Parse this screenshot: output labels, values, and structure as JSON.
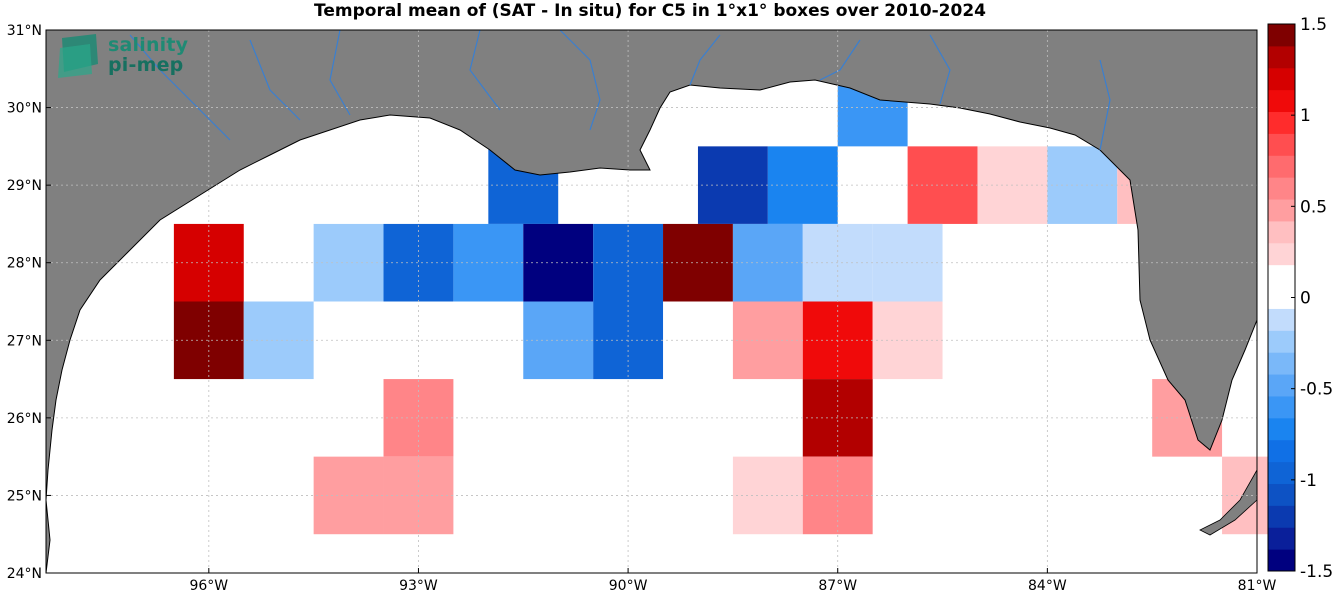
{
  "title": "Temporal mean of (SAT - In situ) for C5 in 1°x1° boxes over 2010-2024",
  "logo": {
    "line1": "salinity",
    "line2": "pi-mep"
  },
  "axes": {
    "lon_ticks": [
      {
        "value": -96,
        "label": "96°W"
      },
      {
        "value": -93,
        "label": "93°W"
      },
      {
        "value": -90,
        "label": "90°W"
      },
      {
        "value": -87,
        "label": "87°W"
      },
      {
        "value": -84,
        "label": "84°W"
      },
      {
        "value": -81,
        "label": "81°W"
      }
    ],
    "lat_ticks": [
      {
        "value": 31,
        "label": "31°N"
      },
      {
        "value": 30,
        "label": "30°N"
      },
      {
        "value": 29,
        "label": "29°N"
      },
      {
        "value": 28,
        "label": "28°N"
      },
      {
        "value": 27,
        "label": "27°N"
      },
      {
        "value": 26,
        "label": "26°N"
      },
      {
        "value": 25,
        "label": "25°N"
      },
      {
        "value": 24,
        "label": "24°N"
      }
    ]
  },
  "colorbar": {
    "min": -1.5,
    "max": 1.5,
    "step": 0.125,
    "ticks": [
      {
        "value": 1.5,
        "label": "1.5"
      },
      {
        "value": 1,
        "label": "1"
      },
      {
        "value": 0.5,
        "label": "0.5"
      },
      {
        "value": 0,
        "label": "0"
      },
      {
        "value": -0.5,
        "label": "-0.5"
      },
      {
        "value": -1,
        "label": "-1"
      },
      {
        "value": -1.5,
        "label": "-1.5"
      }
    ],
    "colors": [
      "#00007f",
      "#0a1f9a",
      "#0b3ab0",
      "#0d52c4",
      "#0f64d6",
      "#1070e6",
      "#1a84f0",
      "#3a96f5",
      "#5aa6f7",
      "#7ab8f9",
      "#9ccbfb",
      "#c2dcfc",
      "#ffffff",
      "#ffffff",
      "#ffd4d6",
      "#ffbfc1",
      "#ff9ea0",
      "#ff8588",
      "#ff6b6e",
      "#ff4e50",
      "#ff2c2c",
      "#f00a0a",
      "#d60000",
      "#b20000",
      "#7f0000"
    ]
  },
  "map_colors": {
    "land": "#808080",
    "ocean": "#ffffff",
    "river": "#3a7fd0",
    "coast": "#000000",
    "grid": "#bfbfbf"
  },
  "chart_data": {
    "type": "heatmap",
    "title": "Temporal mean of (SAT - In situ) for C5 in 1°x1° boxes over 2010-2024",
    "xlabel": "",
    "ylabel": "",
    "xlim": [
      -98.33,
      -81.0
    ],
    "ylim": [
      24.0,
      31.0
    ],
    "cell_size_deg": 1,
    "color_range": [
      -1.5,
      1.5
    ],
    "cells": [
      {
        "lon": -86.5,
        "lat": 30.0,
        "value": -0.55
      },
      {
        "lon": -91.5,
        "lat": 29.0,
        "value": -0.95
      },
      {
        "lon": -88.5,
        "lat": 29.0,
        "value": -1.25
      },
      {
        "lon": -87.5,
        "lat": 29.0,
        "value": -0.75
      },
      {
        "lon": -85.5,
        "lat": 29.0,
        "value": 0.85
      },
      {
        "lon": -84.5,
        "lat": 29.0,
        "value": 0.2
      },
      {
        "lon": -83.5,
        "lat": 29.0,
        "value": -0.2
      },
      {
        "lon": -82.5,
        "lat": 29.0,
        "value": 0.35
      },
      {
        "lon": -96.0,
        "lat": 28.0,
        "value": 1.2
      },
      {
        "lon": -94.0,
        "lat": 28.0,
        "value": -0.3
      },
      {
        "lon": -93.0,
        "lat": 28.0,
        "value": -1.0
      },
      {
        "lon": -92.0,
        "lat": 28.0,
        "value": -0.6
      },
      {
        "lon": -91.0,
        "lat": 28.0,
        "value": -1.5
      },
      {
        "lon": -90.0,
        "lat": 28.0,
        "value": -0.95
      },
      {
        "lon": -89.0,
        "lat": 28.0,
        "value": 1.45
      },
      {
        "lon": -88.0,
        "lat": 28.0,
        "value": -0.45
      },
      {
        "lon": -87.0,
        "lat": 28.0,
        "value": -0.1
      },
      {
        "lon": -86.0,
        "lat": 28.0,
        "value": -0.1
      },
      {
        "lon": -96.0,
        "lat": 27.0,
        "value": 1.45
      },
      {
        "lon": -95.0,
        "lat": 27.0,
        "value": -0.3
      },
      {
        "lon": -91.0,
        "lat": 27.0,
        "value": -0.45
      },
      {
        "lon": -90.0,
        "lat": 27.0,
        "value": -0.95
      },
      {
        "lon": -88.0,
        "lat": 27.0,
        "value": 0.45
      },
      {
        "lon": -87.0,
        "lat": 27.0,
        "value": 1.1
      },
      {
        "lon": -86.0,
        "lat": 27.0,
        "value": 0.2
      },
      {
        "lon": -93.0,
        "lat": 26.0,
        "value": 0.6
      },
      {
        "lon": -87.0,
        "lat": 26.0,
        "value": 1.3
      },
      {
        "lon": -82.0,
        "lat": 26.0,
        "value": 0.45
      },
      {
        "lon": -94.0,
        "lat": 25.0,
        "value": 0.45
      },
      {
        "lon": -93.0,
        "lat": 25.0,
        "value": 0.45
      },
      {
        "lon": -88.0,
        "lat": 25.0,
        "value": 0.2
      },
      {
        "lon": -87.0,
        "lat": 25.0,
        "value": 0.6
      },
      {
        "lon": -81.0,
        "lat": 25.0,
        "value": 0.35
      }
    ]
  }
}
